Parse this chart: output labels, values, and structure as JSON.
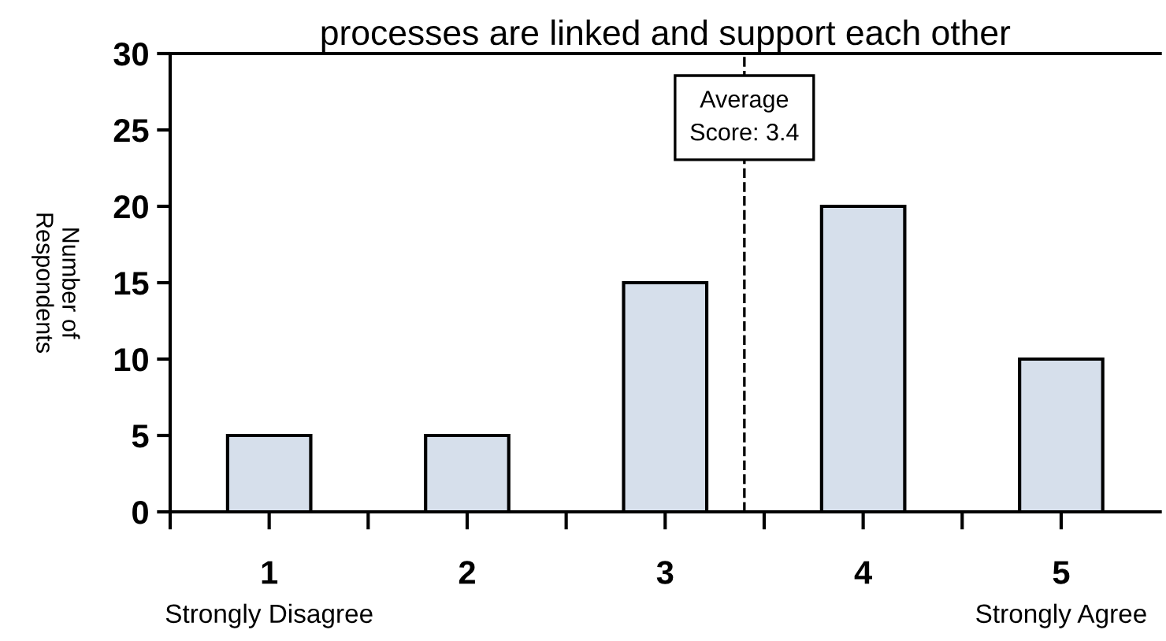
{
  "chart_data": {
    "type": "bar",
    "title": "processes are linked and support each other",
    "ylabel": "Number of\nRespondents",
    "x": [
      1,
      2,
      3,
      4,
      5
    ],
    "values": [
      5,
      5,
      15,
      20,
      10
    ],
    "color": "#d6dfeb",
    "xlim": [
      0.5,
      5.5
    ],
    "xticks": [
      {
        "value": 0.5,
        "label": null
      },
      {
        "value": 1,
        "label": "1"
      },
      {
        "value": 1.5,
        "label": null
      },
      {
        "value": 2,
        "label": "2"
      },
      {
        "value": 2.5,
        "label": null
      },
      {
        "value": 3,
        "label": "3"
      },
      {
        "value": 3.5,
        "label": null
      },
      {
        "value": 4,
        "label": "4"
      },
      {
        "value": 4.5,
        "label": null
      },
      {
        "value": 5,
        "label": "5"
      }
    ],
    "ylim": [
      0,
      30
    ],
    "yticks": [
      0,
      5,
      10,
      15,
      20,
      25,
      30
    ],
    "grid": false,
    "legend": false,
    "ref_lines": [
      {
        "axis": "x",
        "value": 3.4,
        "label": "Average\nScore: 3.4",
        "line_style": "dashed",
        "color": "#000000"
      }
    ],
    "annotations": [
      "Strongly Disagree",
      "Strongly Agree"
    ]
  }
}
